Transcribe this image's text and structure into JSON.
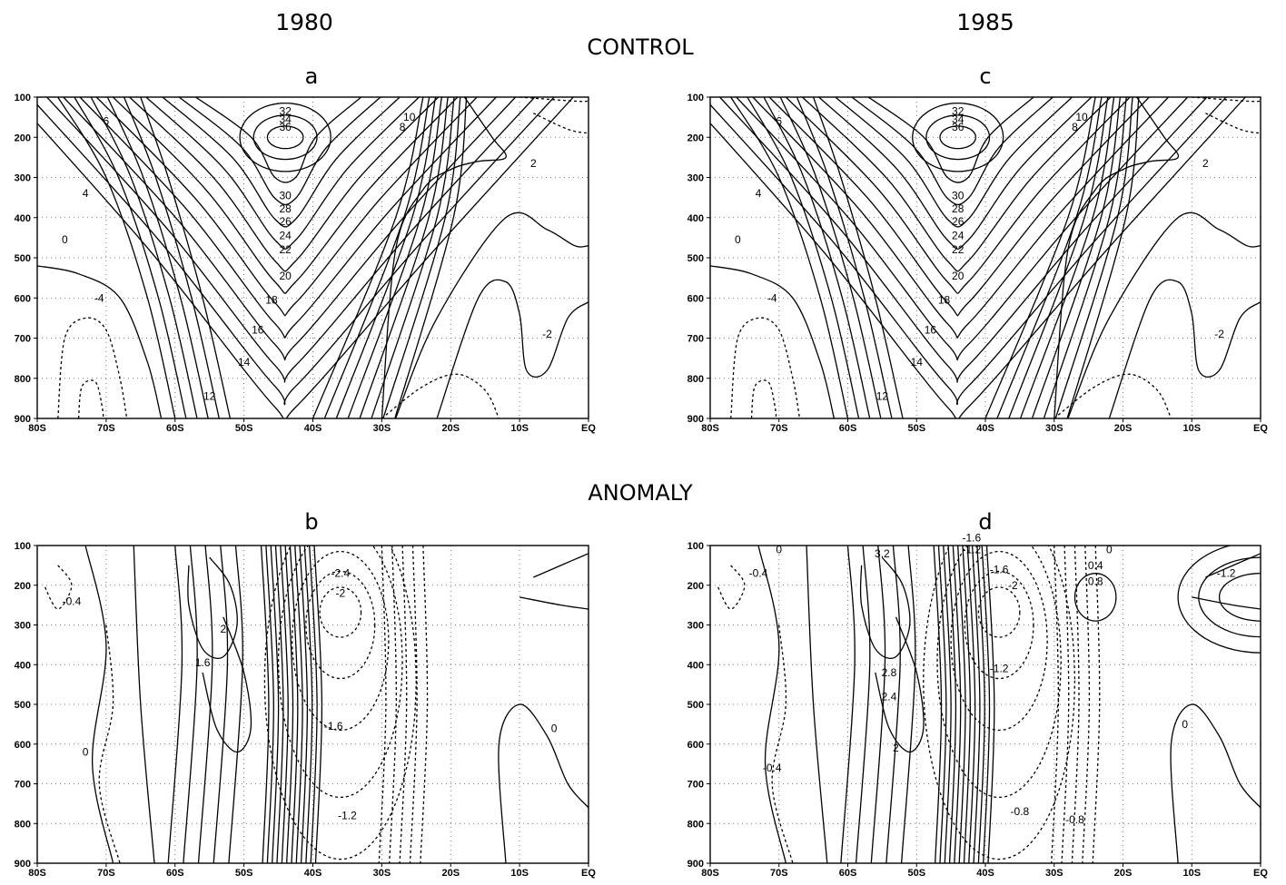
{
  "headers": {
    "year_left": "1980",
    "year_right": "1985",
    "section_top": "CONTROL",
    "section_bottom": "ANOMALY"
  },
  "chart_data": [
    {
      "type": "contour",
      "panel": "a",
      "row": "CONTROL",
      "year": "1980",
      "x_ticks": [
        "80S",
        "70S",
        "60S",
        "50S",
        "40S",
        "30S",
        "20S",
        "10S",
        "EQ"
      ],
      "y_ticks": [
        100,
        200,
        300,
        400,
        500,
        600,
        700,
        800,
        900
      ],
      "xlim": [
        -80,
        0
      ],
      "ylim": [
        100,
        900
      ],
      "y_reversed": true,
      "grid": "dotted",
      "center": {
        "lat": -44,
        "p": 200,
        "max": 36
      },
      "contour_labels": [
        "32",
        "34",
        "36",
        "30",
        "28",
        "26",
        "24",
        "22",
        "20",
        "18",
        "16",
        "14",
        "12",
        "10",
        "8",
        "6",
        "4",
        "2",
        "0",
        "-2",
        "-4"
      ],
      "negative_contours": "dashed"
    },
    {
      "type": "contour",
      "panel": "c",
      "row": "CONTROL",
      "year": "1985",
      "x_ticks": [
        "80S",
        "70S",
        "60S",
        "50S",
        "40S",
        "30S",
        "20S",
        "10S",
        "EQ"
      ],
      "y_ticks": [
        100,
        200,
        300,
        400,
        500,
        600,
        700,
        800,
        900
      ],
      "xlim": [
        -80,
        0
      ],
      "ylim": [
        100,
        900
      ],
      "y_reversed": true,
      "grid": "dotted",
      "center": {
        "lat": -44,
        "p": 200,
        "max": 36
      },
      "contour_labels": [
        "32",
        "34",
        "36",
        "30",
        "28",
        "26",
        "24",
        "22",
        "20",
        "18",
        "16",
        "14",
        "12",
        "10",
        "8",
        "6",
        "4",
        "2",
        "0",
        "-2",
        "-4"
      ],
      "negative_contours": "dashed"
    },
    {
      "type": "contour",
      "panel": "b",
      "row": "ANOMALY",
      "year": "1980",
      "x_ticks": [
        "80S",
        "70S",
        "60S",
        "50S",
        "40S",
        "30S",
        "20S",
        "10S",
        "EQ"
      ],
      "y_ticks": [
        100,
        200,
        300,
        400,
        500,
        600,
        700,
        800,
        900
      ],
      "xlim": [
        -80,
        0
      ],
      "ylim": [
        100,
        900
      ],
      "y_reversed": true,
      "grid": "dotted",
      "contour_labels": [
        "-0.4",
        "0",
        "2",
        "1.6",
        "-2.4",
        "-2",
        "-1.6",
        "-1.2",
        "0"
      ],
      "negative_contours": "dashed"
    },
    {
      "type": "contour",
      "panel": "d",
      "row": "ANOMALY",
      "year": "1985",
      "x_ticks": [
        "80S",
        "70S",
        "60S",
        "50S",
        "40S",
        "30S",
        "20S",
        "10S",
        "EQ"
      ],
      "y_ticks": [
        100,
        200,
        300,
        400,
        500,
        600,
        700,
        800,
        900
      ],
      "xlim": [
        -80,
        0
      ],
      "ylim": [
        100,
        900
      ],
      "y_reversed": true,
      "grid": "dotted",
      "contour_labels": [
        "0",
        "-0.4",
        "3.2",
        "-1.2",
        "-1.6",
        "-2",
        "0",
        "0.4",
        "0.8",
        "-0.8",
        "-1.2",
        "-1.6",
        "2.8",
        "2.4",
        "2",
        "-0.4",
        "0",
        "-0.8",
        "-1.2"
      ],
      "negative_contours": "dashed"
    }
  ]
}
